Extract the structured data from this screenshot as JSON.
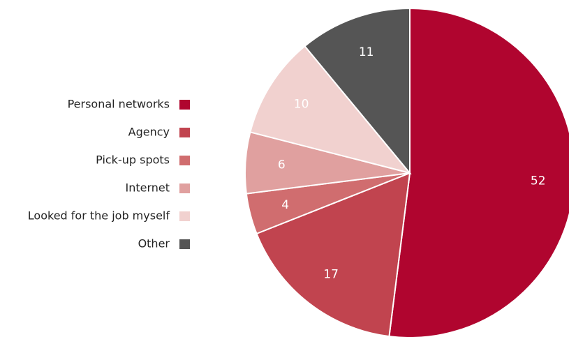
{
  "chart_data": {
    "type": "pie",
    "categories": [
      "Personal networks",
      "Agency",
      "Pick-up spots",
      "Internet",
      "Looked for the job myself",
      "Other"
    ],
    "values": [
      52,
      17,
      4,
      6,
      10,
      11
    ],
    "colors": [
      "#b0052f",
      "#c1444f",
      "#d06d6f",
      "#e0a09f",
      "#f1d1cf",
      "#555555"
    ],
    "legend": "left"
  }
}
